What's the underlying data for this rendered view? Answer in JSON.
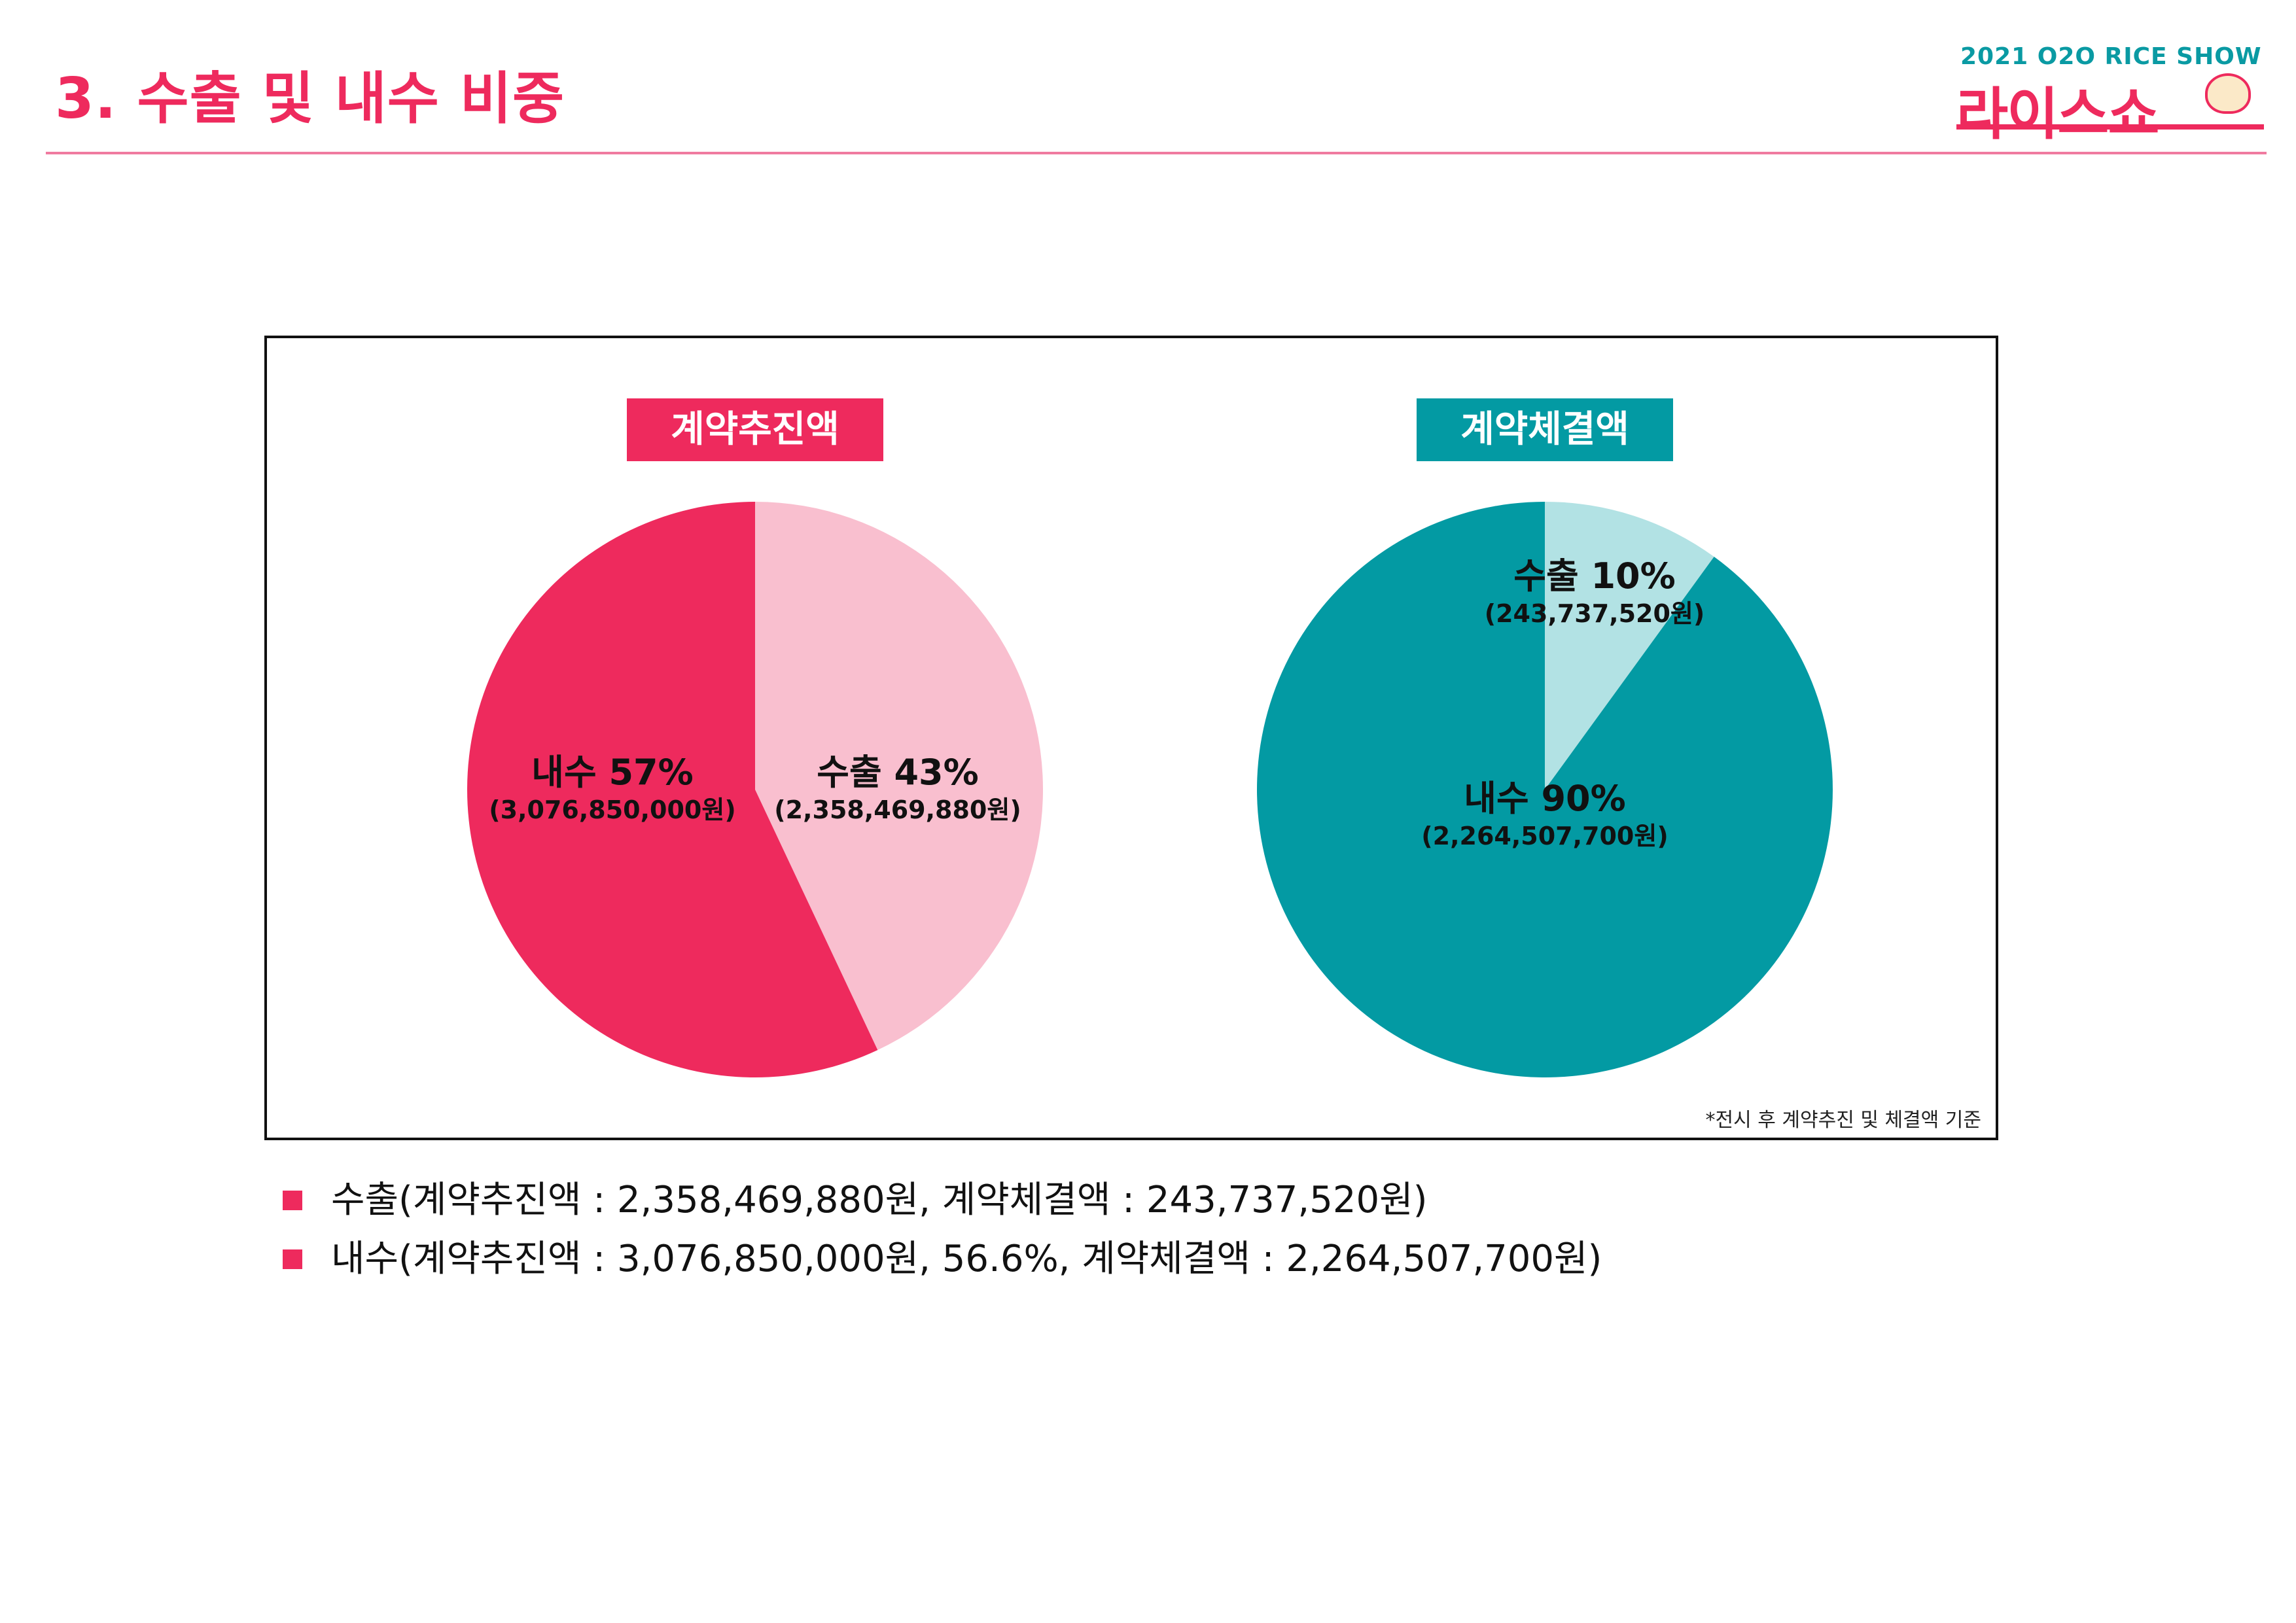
{
  "page": {
    "title": "3. 수출 및 내수 비중",
    "logo_top": "2021 O2O RICE SHOW",
    "logo_main": "라이스쇼"
  },
  "colors": {
    "accent_pink": "#ee2a5d",
    "light_pink": "#f9bfcf",
    "teal": "#039aa3",
    "light_teal": "#b2e2e4"
  },
  "chart_data": [
    {
      "type": "pie",
      "title": "계약추진액",
      "slices": [
        {
          "label": "수출",
          "percent": 43,
          "percent_label": "수출 43%",
          "amount_label": "(2,358,469,880원)",
          "color": "#f9bfcf"
        },
        {
          "label": "내수",
          "percent": 57,
          "percent_label": "내수 57%",
          "amount_label": "(3,076,850,000원)",
          "color": "#ee2a5d"
        }
      ]
    },
    {
      "type": "pie",
      "title": "계약체결액",
      "slices": [
        {
          "label": "수출",
          "percent": 10,
          "percent_label": "수출 10%",
          "amount_label": "(243,737,520원)",
          "color": "#b2e2e4"
        },
        {
          "label": "내수",
          "percent": 90,
          "percent_label": "내수 90%",
          "amount_label": "(2,264,507,700원)",
          "color": "#039aa3"
        }
      ]
    }
  ],
  "footnote": "*전시 후 계약추진 및 체결액 기준",
  "legend": [
    "수출(계약추진액 : 2,358,469,880원, 계약체결액 : 243,737,520원)",
    "내수(계약추진액 : 3,076,850,000원, 56.6%, 계약체결액 : 2,264,507,700원)"
  ]
}
